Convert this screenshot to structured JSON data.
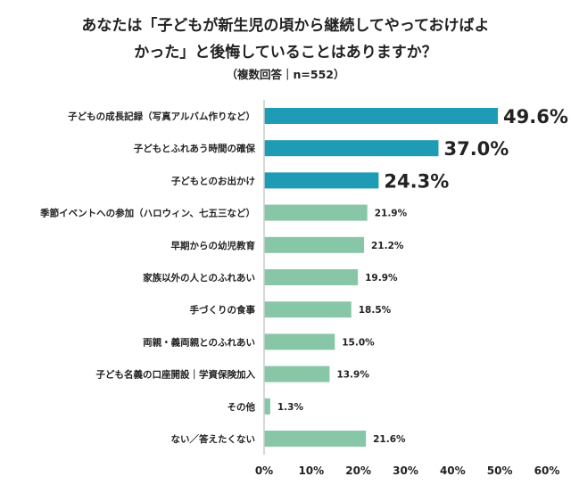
{
  "chart_data": {
    "type": "bar",
    "orientation": "horizontal",
    "title_line1": "あなたは「子どもが新生児の頃から継続してやっておけばよ",
    "title_line2": "かった」と後悔していることはありますか？",
    "subtitle": "（複数回答｜n=552）",
    "categories": [
      "子どもの成長記録（写真アルバム作りなど）",
      "子どもとふれあう時間の確保",
      "子どもとのお出かけ",
      "季節イベントへの参加（ハロウィン、七五三など）",
      "早期からの幼児教育",
      "家族以外の人とのふれあい",
      "手づくりの食事",
      "両親・義両親とのふれあい",
      "子ども名義の口座開設｜学資保険加入",
      "その他",
      "ない／答えたくない"
    ],
    "values": [
      49.6,
      37.0,
      24.3,
      21.9,
      21.2,
      19.9,
      18.5,
      15.0,
      13.9,
      1.3,
      21.6
    ],
    "data_labels": [
      "49.6%",
      "37.0%",
      "24.3%",
      "21.9%",
      "21.2%",
      "19.9%",
      "18.5%",
      "15.0%",
      "13.9%",
      "1.3%",
      "21.6%"
    ],
    "highlight_top_n": 3,
    "x_ticks": [
      "0%",
      "10%",
      "20%",
      "30%",
      "40%",
      "50%",
      "60%"
    ],
    "xlim": [
      0,
      60
    ],
    "grid": false,
    "colors": {
      "highlight": "#1f9bb5",
      "normal": "#88c6a8",
      "axis": "#cccccc"
    }
  }
}
